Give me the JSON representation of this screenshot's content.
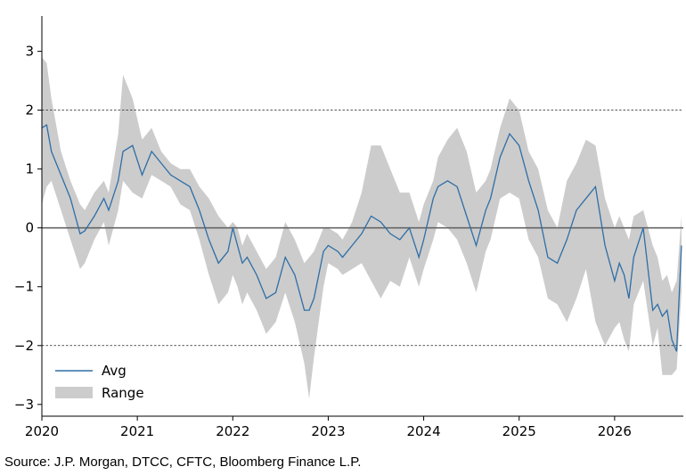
{
  "chart_data": {
    "type": "area",
    "title": "",
    "xlabel": "",
    "ylabel": "",
    "xlim": [
      2020.0,
      2026.72
    ],
    "ylim": [
      -3.2,
      3.6
    ],
    "x_ticks": [
      2020,
      2021,
      2022,
      2023,
      2024,
      2025,
      2026
    ],
    "x_tick_labels": [
      "2020",
      "2021",
      "2022",
      "2023",
      "2024",
      "2025",
      "2026"
    ],
    "y_ticks": [
      -3,
      -2,
      -1,
      0,
      1,
      2,
      3
    ],
    "y_tick_labels": [
      "−3",
      "−2",
      "−1",
      "0",
      "1",
      "2",
      "3"
    ],
    "reference_lines": [
      {
        "y": 2,
        "style": "dotted"
      },
      {
        "y": 0,
        "style": "solid"
      },
      {
        "y": -2,
        "style": "dotted"
      }
    ],
    "legend_position": "lower-left",
    "series": [
      {
        "name": "Avg",
        "kind": "line",
        "color": "#2e6ea6",
        "x": [
          2020.0,
          2020.05,
          2020.1,
          2020.2,
          2020.3,
          2020.4,
          2020.45,
          2020.55,
          2020.65,
          2020.7,
          2020.8,
          2020.85,
          2020.95,
          2021.05,
          2021.15,
          2021.25,
          2021.35,
          2021.45,
          2021.55,
          2021.65,
          2021.75,
          2021.85,
          2021.95,
          2022.0,
          2022.05,
          2022.1,
          2022.15,
          2022.25,
          2022.35,
          2022.45,
          2022.55,
          2022.65,
          2022.75,
          2022.8,
          2022.85,
          2022.95,
          2023.0,
          2023.1,
          2023.15,
          2023.25,
          2023.35,
          2023.45,
          2023.55,
          2023.65,
          2023.75,
          2023.85,
          2023.95,
          2024.0,
          2024.1,
          2024.15,
          2024.25,
          2024.35,
          2024.45,
          2024.55,
          2024.65,
          2024.7,
          2024.8,
          2024.9,
          2025.0,
          2025.1,
          2025.2,
          2025.3,
          2025.4,
          2025.5,
          2025.6,
          2025.7,
          2025.8,
          2025.9,
          2026.0,
          2026.05,
          2026.1,
          2026.15,
          2026.2,
          2026.3,
          2026.4,
          2026.45,
          2026.5,
          2026.55,
          2026.6,
          2026.65,
          2026.7
        ],
        "y": [
          1.7,
          1.75,
          1.3,
          0.9,
          0.5,
          -0.1,
          -0.05,
          0.2,
          0.5,
          0.3,
          0.8,
          1.3,
          1.4,
          0.9,
          1.3,
          1.1,
          0.9,
          0.8,
          0.7,
          0.3,
          -0.2,
          -0.6,
          -0.4,
          0.0,
          -0.3,
          -0.6,
          -0.5,
          -0.8,
          -1.2,
          -1.1,
          -0.5,
          -0.8,
          -1.4,
          -1.4,
          -1.2,
          -0.4,
          -0.3,
          -0.4,
          -0.5,
          -0.3,
          -0.1,
          0.2,
          0.1,
          -0.1,
          -0.2,
          0.0,
          -0.5,
          -0.2,
          0.5,
          0.7,
          0.8,
          0.7,
          0.2,
          -0.3,
          0.3,
          0.5,
          1.2,
          1.6,
          1.4,
          0.8,
          0.3,
          -0.5,
          -0.6,
          -0.2,
          0.3,
          0.5,
          0.7,
          -0.3,
          -0.9,
          -0.6,
          -0.8,
          -1.2,
          -0.5,
          0.0,
          -1.4,
          -1.3,
          -1.5,
          -1.4,
          -1.9,
          -2.1,
          -0.3
        ]
      },
      {
        "name": "Range",
        "kind": "band",
        "color": "#cccccc",
        "x": [
          2020.0,
          2020.05,
          2020.1,
          2020.2,
          2020.3,
          2020.4,
          2020.45,
          2020.55,
          2020.65,
          2020.7,
          2020.8,
          2020.85,
          2020.95,
          2021.05,
          2021.15,
          2021.25,
          2021.35,
          2021.45,
          2021.55,
          2021.65,
          2021.75,
          2021.85,
          2021.95,
          2022.0,
          2022.05,
          2022.1,
          2022.15,
          2022.25,
          2022.35,
          2022.45,
          2022.55,
          2022.65,
          2022.75,
          2022.8,
          2022.85,
          2022.95,
          2023.0,
          2023.1,
          2023.15,
          2023.25,
          2023.35,
          2023.45,
          2023.55,
          2023.65,
          2023.75,
          2023.85,
          2023.95,
          2024.0,
          2024.1,
          2024.15,
          2024.25,
          2024.35,
          2024.45,
          2024.55,
          2024.65,
          2024.7,
          2024.8,
          2024.9,
          2025.0,
          2025.1,
          2025.2,
          2025.3,
          2025.4,
          2025.5,
          2025.6,
          2025.7,
          2025.8,
          2025.9,
          2026.0,
          2026.05,
          2026.1,
          2026.15,
          2026.2,
          2026.3,
          2026.4,
          2026.45,
          2026.5,
          2026.55,
          2026.6,
          2026.65,
          2026.7
        ],
        "low": [
          0.4,
          0.7,
          0.8,
          0.3,
          -0.2,
          -0.7,
          -0.6,
          -0.2,
          0.1,
          -0.3,
          0.3,
          0.8,
          0.6,
          0.5,
          0.9,
          0.8,
          0.7,
          0.4,
          0.3,
          -0.2,
          -0.8,
          -1.3,
          -1.1,
          -0.8,
          -1.0,
          -1.3,
          -1.1,
          -1.4,
          -1.8,
          -1.6,
          -1.1,
          -1.6,
          -2.3,
          -2.9,
          -2.2,
          -1.0,
          -0.6,
          -0.7,
          -0.8,
          -0.7,
          -0.6,
          -0.9,
          -1.2,
          -0.9,
          -1.0,
          -0.5,
          -1.0,
          -0.7,
          -0.2,
          0.1,
          0.0,
          -0.2,
          -0.6,
          -1.1,
          -0.4,
          -0.2,
          0.5,
          0.6,
          0.5,
          -0.2,
          -0.5,
          -1.2,
          -1.3,
          -1.6,
          -1.2,
          -0.7,
          -1.6,
          -2.0,
          -1.7,
          -1.6,
          -1.9,
          -2.1,
          -1.3,
          -0.9,
          -2.0,
          -1.7,
          -2.5,
          -2.5,
          -2.5,
          -2.4,
          -1.1
        ],
        "high": [
          2.9,
          2.8,
          2.2,
          1.3,
          0.8,
          0.4,
          0.3,
          0.6,
          0.8,
          0.6,
          1.6,
          2.6,
          2.2,
          1.5,
          1.7,
          1.3,
          1.1,
          1.0,
          1.0,
          0.7,
          0.5,
          0.2,
          0.0,
          0.1,
          0.0,
          -0.3,
          -0.1,
          -0.4,
          -0.7,
          -0.5,
          0.1,
          -0.2,
          -0.6,
          -0.5,
          -0.4,
          0.0,
          0.0,
          -0.1,
          -0.2,
          0.1,
          0.6,
          1.4,
          1.4,
          1.0,
          0.6,
          0.6,
          0.1,
          0.4,
          0.8,
          1.2,
          1.5,
          1.7,
          1.3,
          0.6,
          0.8,
          1.0,
          1.7,
          2.2,
          2.0,
          1.3,
          1.0,
          0.3,
          0.0,
          0.8,
          1.1,
          1.5,
          1.4,
          0.5,
          0.0,
          0.2,
          0.0,
          -0.2,
          0.2,
          0.3,
          -0.3,
          -0.5,
          -0.9,
          -0.8,
          -1.1,
          -0.9,
          0.2
        ]
      }
    ]
  },
  "source": "Source: J.P. Morgan, DTCC, CFTC, Bloomberg Finance L.P."
}
